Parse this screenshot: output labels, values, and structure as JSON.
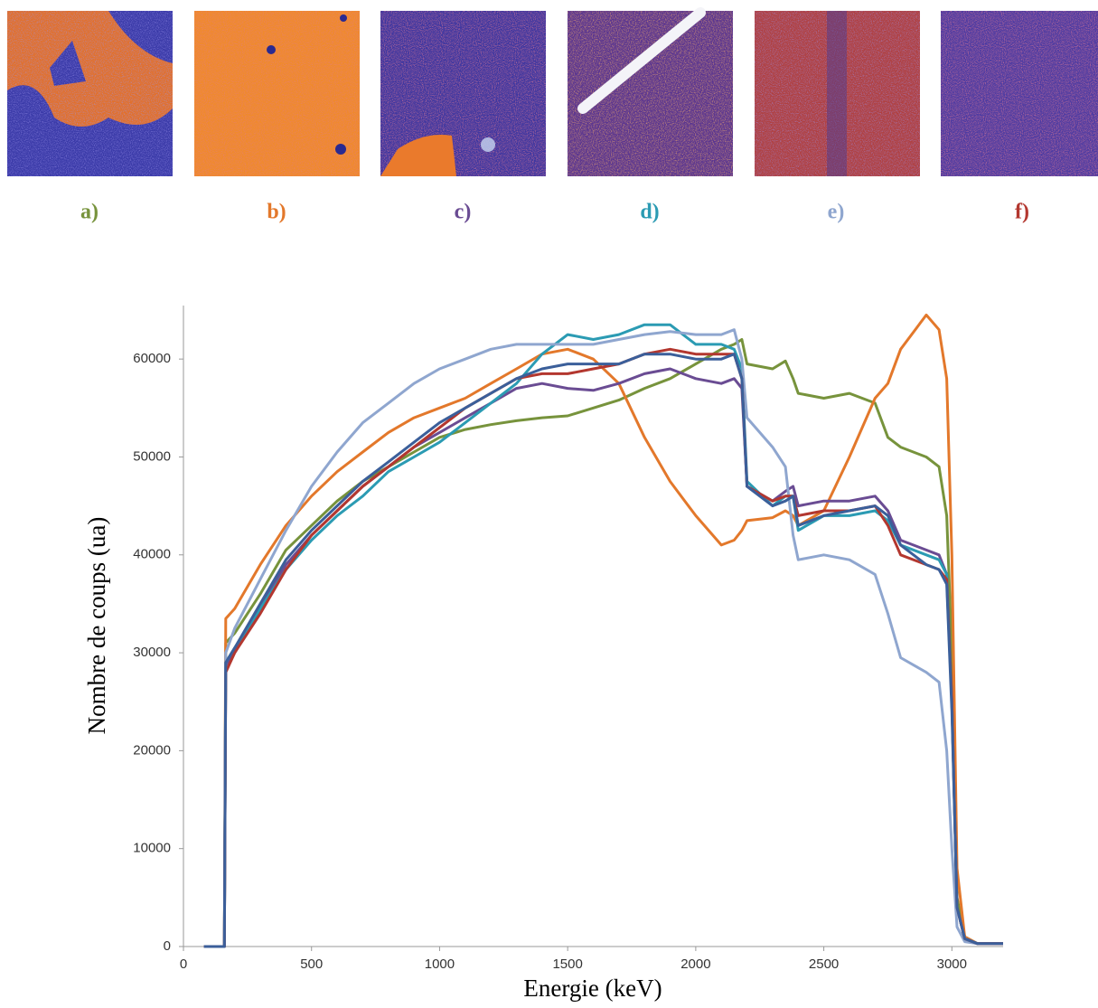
{
  "chart_data": {
    "type": "line",
    "x_label": "Energie (keV)",
    "y_label": "Nombre de coups (ua)",
    "xlim": [
      0,
      3200
    ],
    "xticks": [
      0,
      500,
      1000,
      1500,
      2000,
      2500,
      3000
    ],
    "ylim": [
      0,
      65000
    ],
    "yticks": [
      0,
      10000,
      20000,
      30000,
      40000,
      50000,
      60000
    ],
    "x": [
      80,
      160,
      165,
      200,
      300,
      400,
      500,
      600,
      700,
      800,
      900,
      1000,
      1100,
      1200,
      1300,
      1400,
      1500,
      1600,
      1700,
      1800,
      1900,
      2000,
      2100,
      2150,
      2180,
      2200,
      2300,
      2350,
      2380,
      2400,
      2500,
      2600,
      2700,
      2750,
      2800,
      2900,
      2950,
      2980,
      3000,
      3020,
      3050,
      3100,
      3200
    ],
    "series": [
      {
        "name": "a)",
        "color": "#77933c",
        "values": [
          0,
          0,
          31000,
          32000,
          36000,
          40500,
          43000,
          45500,
          47500,
          49000,
          50500,
          52000,
          52800,
          53300,
          53700,
          54000,
          54200,
          55000,
          55800,
          57000,
          58000,
          59500,
          61000,
          61500,
          62000,
          59500,
          59000,
          59800,
          58000,
          56500,
          56000,
          56500,
          55500,
          52000,
          51000,
          50000,
          49000,
          44000,
          30000,
          5000,
          1000,
          300,
          300
        ]
      },
      {
        "name": "b)",
        "color": "#e3782b",
        "values": [
          0,
          0,
          33500,
          34500,
          39000,
          43000,
          46000,
          48500,
          50500,
          52500,
          54000,
          55000,
          56000,
          57500,
          59000,
          60500,
          61000,
          60000,
          57500,
          52000,
          47500,
          44000,
          41000,
          41500,
          42500,
          43500,
          43800,
          44500,
          44000,
          43000,
          44500,
          50000,
          56000,
          57500,
          61000,
          64500,
          63000,
          58000,
          40000,
          8000,
          1000,
          300,
          300
        ]
      },
      {
        "name": "c)",
        "color": "#6a4c93",
        "values": [
          0,
          0,
          28500,
          30000,
          34500,
          39000,
          42000,
          44500,
          47000,
          49000,
          51000,
          52500,
          54000,
          55500,
          57000,
          57500,
          57000,
          56800,
          57500,
          58500,
          59000,
          58000,
          57500,
          58000,
          57000,
          47000,
          45500,
          46500,
          47000,
          45000,
          45500,
          45500,
          46000,
          44500,
          41500,
          40500,
          40000,
          38000,
          25000,
          4000,
          800,
          300,
          300
        ]
      },
      {
        "name": "d)",
        "color": "#2b9bb3",
        "values": [
          0,
          0,
          29000,
          30500,
          34500,
          38500,
          41500,
          44000,
          46000,
          48500,
          50000,
          51500,
          53500,
          55500,
          57500,
          60500,
          62500,
          62000,
          62500,
          63500,
          63500,
          61500,
          61500,
          61000,
          59000,
          47500,
          45000,
          46000,
          46000,
          42500,
          44000,
          44000,
          44500,
          43500,
          41000,
          40000,
          39500,
          38000,
          25000,
          4000,
          800,
          300,
          300
        ]
      },
      {
        "name": "e)",
        "color": "#8fa6cf",
        "values": [
          0,
          0,
          30000,
          32500,
          37500,
          42500,
          47000,
          50500,
          53500,
          55500,
          57500,
          59000,
          60000,
          61000,
          61500,
          61500,
          61500,
          61500,
          62000,
          62500,
          62800,
          62500,
          62500,
          63000,
          60000,
          54000,
          51000,
          49000,
          42000,
          39500,
          40000,
          39500,
          38000,
          34000,
          29500,
          28000,
          27000,
          20000,
          10000,
          2000,
          500,
          300,
          300
        ]
      },
      {
        "name": "f)",
        "color": "#b3372f",
        "values": [
          0,
          0,
          28000,
          30000,
          34000,
          38500,
          42000,
          44500,
          47000,
          49000,
          51000,
          53000,
          55000,
          56500,
          58000,
          58500,
          58500,
          59000,
          59500,
          60500,
          61000,
          60500,
          60500,
          60500,
          58000,
          47000,
          45500,
          46000,
          46000,
          44000,
          44500,
          44500,
          45000,
          43000,
          40000,
          39000,
          38500,
          37500,
          25000,
          4000,
          800,
          300,
          300
        ]
      },
      {
        "color": "#3b5f9a",
        "values": [
          0,
          0,
          29000,
          30500,
          35000,
          39500,
          42500,
          45000,
          47500,
          49500,
          51500,
          53500,
          55000,
          56500,
          58000,
          59000,
          59500,
          59500,
          59500,
          60500,
          60500,
          60000,
          60000,
          60500,
          58000,
          47000,
          45000,
          45500,
          46000,
          43000,
          44000,
          44500,
          45000,
          44000,
          41000,
          39000,
          38500,
          37000,
          24000,
          4000,
          800,
          300,
          300
        ]
      }
    ]
  }
}
